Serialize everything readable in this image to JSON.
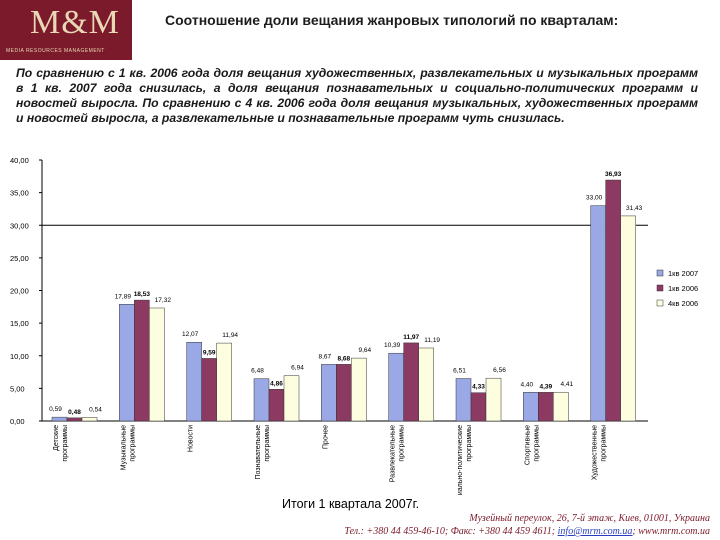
{
  "logo": {
    "mark": "M&M",
    "subtitle": "MEDIA RESOURCES MANAGEMENT"
  },
  "header": {
    "title": "Соотношение доли вещания жанровых типологий по кварталам:"
  },
  "lead_text": "По сравнению с 1 кв. 2006 года доля вещания художественных, развлекательных и музыкальных программ в 1 кв. 2007 года снизилась, а доля вещания познавательных и социально-политических программ и новостей выросла. По сравнению с 4 кв. 2006 года доля вещания музыкальных, художественных программ и новостей выросла, а развлекательные и познавательные программ чуть снизилась.",
  "caption": "Итоги 1 квартала 2007г.",
  "footer": {
    "address": "Музейный переулок, 26, 7-й этаж, Киев, 01001, Украина",
    "contacts": "Тел.: +380 44 459-46-10; Факс: +380 44 459 4611;",
    "email": "info@mrm.com.ua",
    "website": "; www.mrm.com.ua"
  },
  "chart_data": {
    "type": "bar",
    "title": "",
    "xlabel": "",
    "ylabel": "",
    "ylim": [
      0,
      40
    ],
    "ytick_labels": [
      "0,00",
      "5,00",
      "10,00",
      "15,00",
      "20,00",
      "25,00",
      "30,00",
      "35,00",
      "40,00"
    ],
    "reference_line": 30,
    "legend_position": "right",
    "categories": [
      "Детские программы",
      "Музыкальные программы",
      "Новости",
      "Познавательные программы",
      "Прочее",
      "Развлекательные программы",
      "Социально-политические программы",
      "Спортивные программы",
      "Художественные программы"
    ],
    "series": [
      {
        "name": "1кв 2007",
        "color": "#9aa8e6",
        "values": [
          0.59,
          17.89,
          12.07,
          6.48,
          8.67,
          10.39,
          6.51,
          4.4,
          33.0
        ]
      },
      {
        "name": "1кв 2006",
        "color": "#8c3a62",
        "values": [
          0.48,
          18.53,
          9.59,
          4.86,
          8.68,
          11.97,
          4.33,
          4.39,
          36.93
        ]
      },
      {
        "name": "4кв 2006",
        "color": "#fdfde0",
        "values": [
          0.54,
          17.32,
          11.94,
          6.94,
          9.64,
          11.19,
          6.56,
          4.41,
          31.43
        ]
      }
    ],
    "value_labels": [
      [
        "0,59",
        "17,89",
        "12,07",
        "6,48",
        "8,67",
        "10,39",
        "6,51",
        "4,40",
        "33,00"
      ],
      [
        "0,48",
        "18,53",
        "9,59",
        "4,86",
        "8,68",
        "11,97",
        "4,33",
        "4,39",
        "36,93"
      ],
      [
        "0,54",
        "17,32",
        "11,94",
        "6,94",
        "9,64",
        "11,19",
        "6,56",
        "4,41",
        "31,43"
      ]
    ]
  }
}
